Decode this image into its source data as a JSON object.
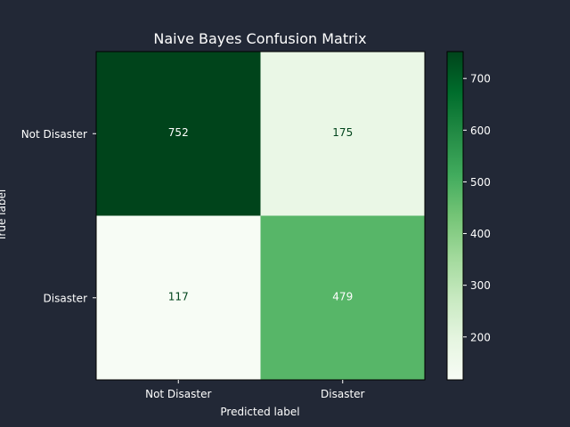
{
  "chart_data": {
    "type": "heatmap",
    "title": "Naive Bayes Confusion Matrix",
    "xlabel": "Predicted label",
    "ylabel": "True label",
    "row_labels": [
      "Not Disaster",
      "Disaster"
    ],
    "col_labels": [
      "Not Disaster",
      "Disaster"
    ],
    "values": [
      [
        752,
        175
      ],
      [
        117,
        479
      ]
    ],
    "colorbar": {
      "cmap": "Greens",
      "vmin": 117,
      "vmax": 752,
      "ticks": [
        "200",
        "300",
        "400",
        "500",
        "600",
        "700"
      ]
    },
    "colors": {
      "background": "#222836",
      "text": "#ffffff",
      "low": "#f7fcf5",
      "high": "#00441b"
    }
  }
}
